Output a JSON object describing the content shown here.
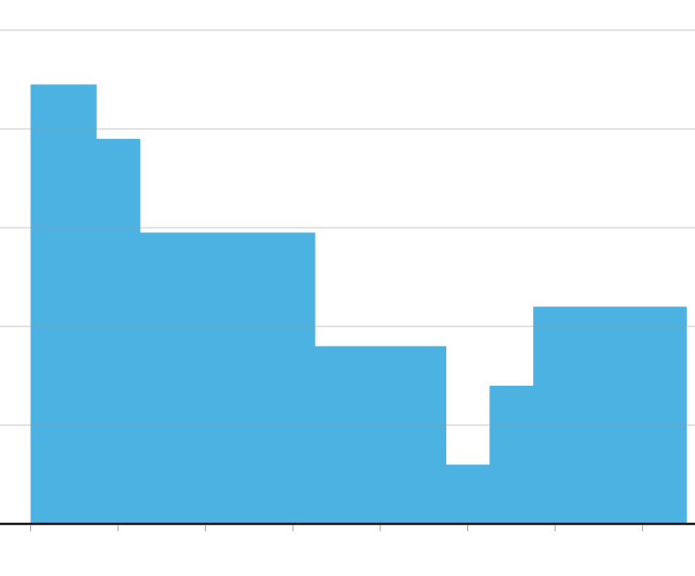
{
  "chart_data": {
    "type": "histogram",
    "bins": [
      0,
      0.75,
      1.25,
      3.25,
      4.75,
      5.25,
      5.75,
      7.5
    ],
    "values": [
      4.45,
      3.9,
      2.95,
      1.8,
      0.6,
      1.4,
      2.2
    ],
    "color": "#4bb2e2",
    "xlim": [
      -0.35,
      7.6
    ],
    "xticks": [
      0,
      1,
      2,
      3,
      4,
      5,
      6,
      7
    ],
    "ylim": [
      0,
      5
    ],
    "yticks": [
      0,
      1,
      2,
      3,
      4,
      5
    ],
    "grid": true
  }
}
